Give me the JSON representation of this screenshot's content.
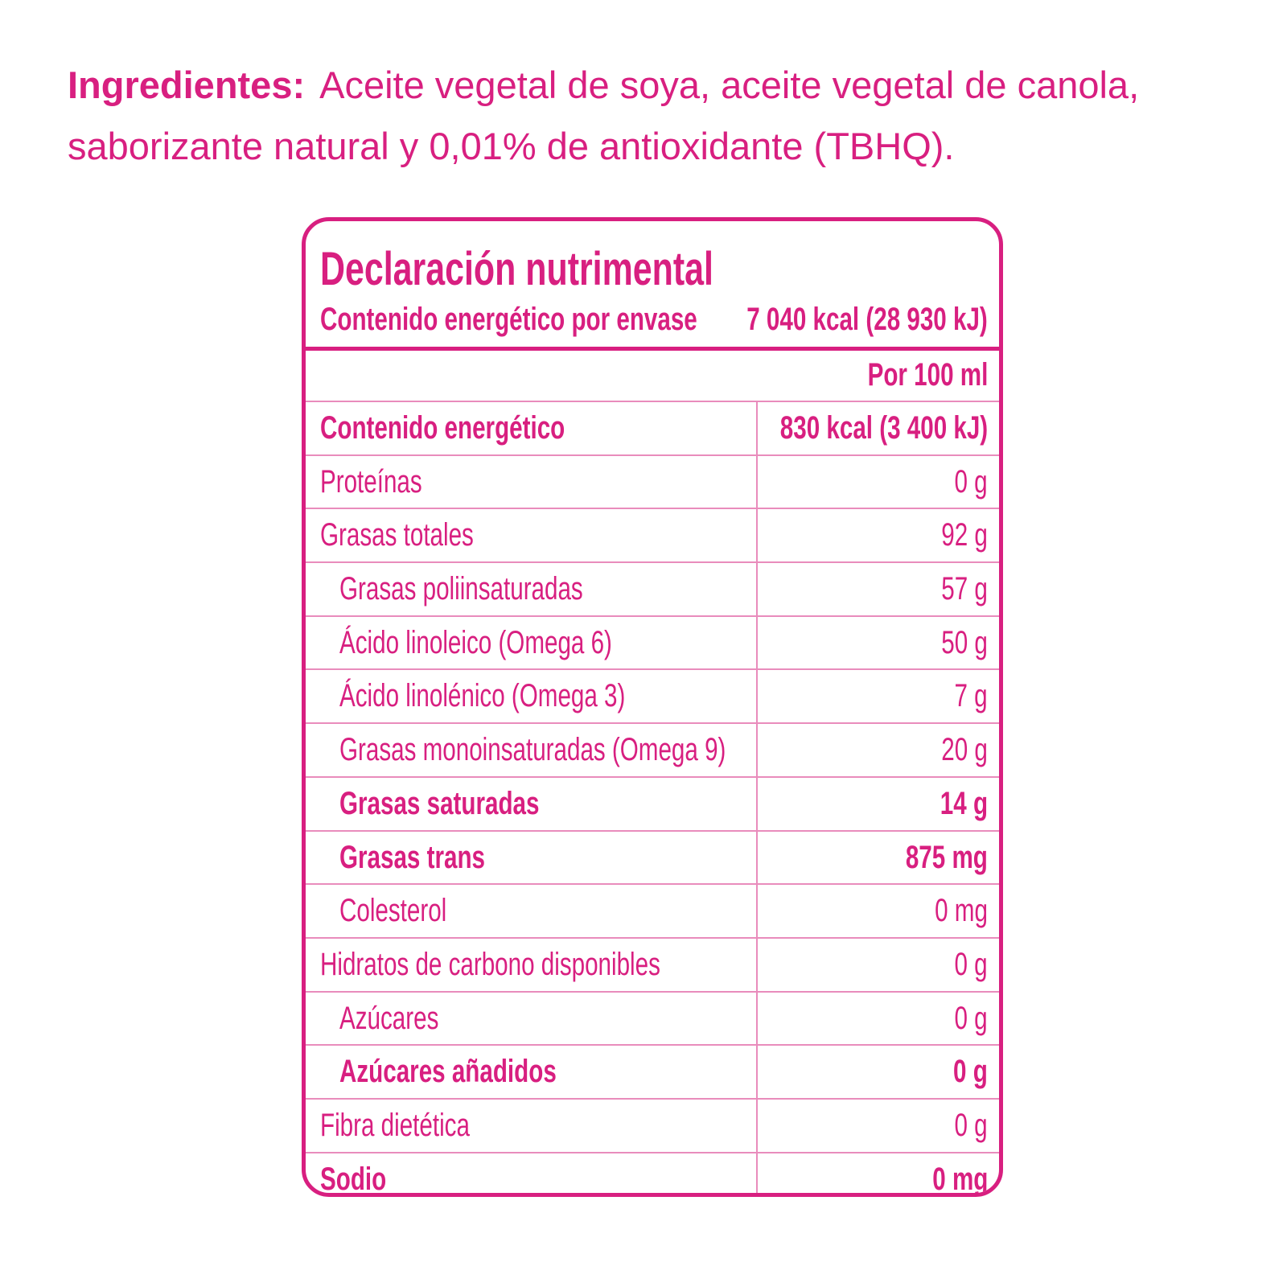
{
  "ingredients": {
    "label": "Ingredientes:",
    "text": "Aceite vegetal de soya, aceite vegetal de canola, saborizante natural y 0,01% de antioxidante (TBHQ)."
  },
  "table": {
    "title": "Declaración nutrimental",
    "energy_per_package": {
      "label": "Contenido energético por envase",
      "value": "7 040 kcal (28 930 kJ)"
    },
    "column_header": "Por 100 ml",
    "rows": [
      {
        "label": "Contenido energético",
        "value": "830 kcal (3 400 kJ)",
        "bold": true,
        "indent": false
      },
      {
        "label": "Proteínas",
        "value": "0 g",
        "bold": false,
        "indent": false
      },
      {
        "label": "Grasas totales",
        "value": "92 g",
        "bold": false,
        "indent": false
      },
      {
        "label": "Grasas poliinsaturadas",
        "value": "57 g",
        "bold": false,
        "indent": true
      },
      {
        "label": "Ácido linoleico (Omega 6)",
        "value": "50 g",
        "bold": false,
        "indent": true
      },
      {
        "label": "Ácido linolénico (Omega 3)",
        "value": "7 g",
        "bold": false,
        "indent": true
      },
      {
        "label": "Grasas monoinsaturadas (Omega 9)",
        "value": "20 g",
        "bold": false,
        "indent": true
      },
      {
        "label": "Grasas saturadas",
        "value": "14 g",
        "bold": true,
        "indent": true
      },
      {
        "label": "Grasas trans",
        "value": "875 mg",
        "bold": true,
        "indent": true
      },
      {
        "label": "Colesterol",
        "value": "0 mg",
        "bold": false,
        "indent": true
      },
      {
        "label": "Hidratos de carbono disponibles",
        "value": "0 g",
        "bold": false,
        "indent": false
      },
      {
        "label": "Azúcares",
        "value": "0 g",
        "bold": false,
        "indent": true
      },
      {
        "label": "Azúcares añadidos",
        "value": "0 g",
        "bold": true,
        "indent": true
      },
      {
        "label": "Fibra dietética",
        "value": "0 g",
        "bold": false,
        "indent": false
      },
      {
        "label": "Sodio",
        "value": "0 mg",
        "bold": true,
        "indent": false
      }
    ]
  }
}
